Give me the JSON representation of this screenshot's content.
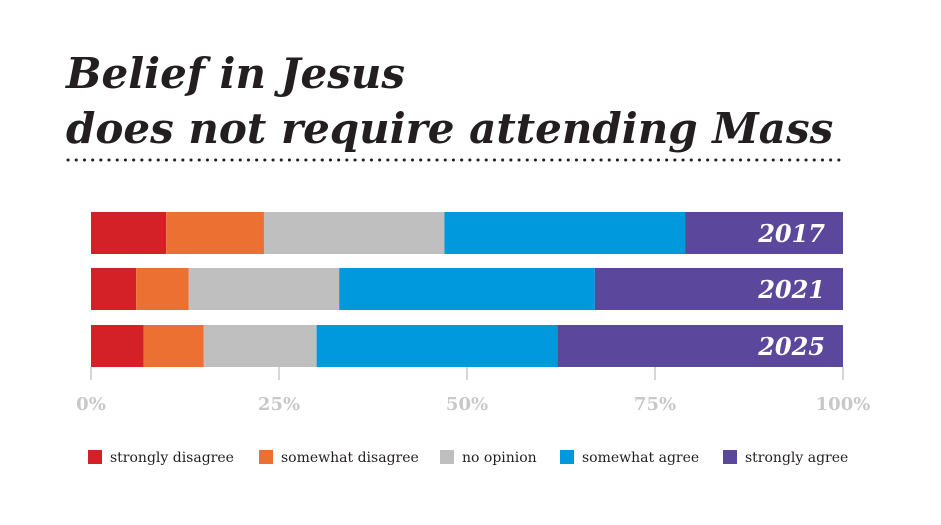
{
  "chart_data": {
    "type": "stacked-bar-horizontal",
    "title": [
      "Belief in Jesus",
      "does not require attending Mass"
    ],
    "categories": [
      "2017",
      "2021",
      "2025"
    ],
    "series": [
      {
        "name": "strongly disagree",
        "color": "#d42027",
        "values": [
          10,
          6,
          7
        ]
      },
      {
        "name": "somewhat disagree",
        "color": "#ec7031",
        "values": [
          13,
          7,
          8
        ]
      },
      {
        "name": "no opinion",
        "color": "#bfbfbf",
        "values": [
          24,
          20,
          15
        ]
      },
      {
        "name": "somewhat agree",
        "color": "#0099dd",
        "values": [
          32,
          34,
          32
        ]
      },
      {
        "name": "strongly agree",
        "color": "#5b479c",
        "values": [
          21,
          33,
          38
        ]
      }
    ],
    "xlim": [
      0,
      100
    ],
    "xticks": [
      {
        "value": 0,
        "label": "0%"
      },
      {
        "value": 25,
        "label": "25%"
      },
      {
        "value": 50,
        "label": "50%"
      },
      {
        "value": 75,
        "label": "75%"
      },
      {
        "value": 100,
        "label": "100%"
      }
    ]
  }
}
